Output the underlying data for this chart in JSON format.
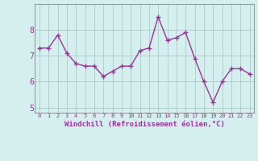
{
  "x": [
    0,
    1,
    2,
    3,
    4,
    5,
    6,
    7,
    8,
    9,
    10,
    11,
    12,
    13,
    14,
    15,
    16,
    17,
    18,
    19,
    20,
    21,
    22,
    23
  ],
  "y": [
    7.3,
    7.3,
    7.8,
    7.1,
    6.7,
    6.6,
    6.6,
    6.2,
    6.4,
    6.6,
    6.6,
    7.2,
    7.3,
    8.5,
    7.6,
    7.7,
    7.9,
    6.9,
    6.0,
    5.2,
    6.0,
    6.5,
    6.5,
    6.3
  ],
  "line_color": "#993399",
  "marker_color": "#993399",
  "background_color": "#d5efef",
  "grid_color": "#aacccc",
  "xlabel": "Windchill (Refroidissement éolien,°C)",
  "ylabel": "",
  "xlim": [
    -0.5,
    23.5
  ],
  "ylim": [
    4.8,
    9.0
  ],
  "yticks": [
    5,
    6,
    7,
    8
  ],
  "xticks": [
    0,
    1,
    2,
    3,
    4,
    5,
    6,
    7,
    8,
    9,
    10,
    11,
    12,
    13,
    14,
    15,
    16,
    17,
    18,
    19,
    20,
    21,
    22,
    23
  ],
  "tick_label_color": "#993399",
  "xlabel_color": "#993399",
  "line_width": 1.0,
  "marker_size": 2.5,
  "spine_color": "#999999"
}
